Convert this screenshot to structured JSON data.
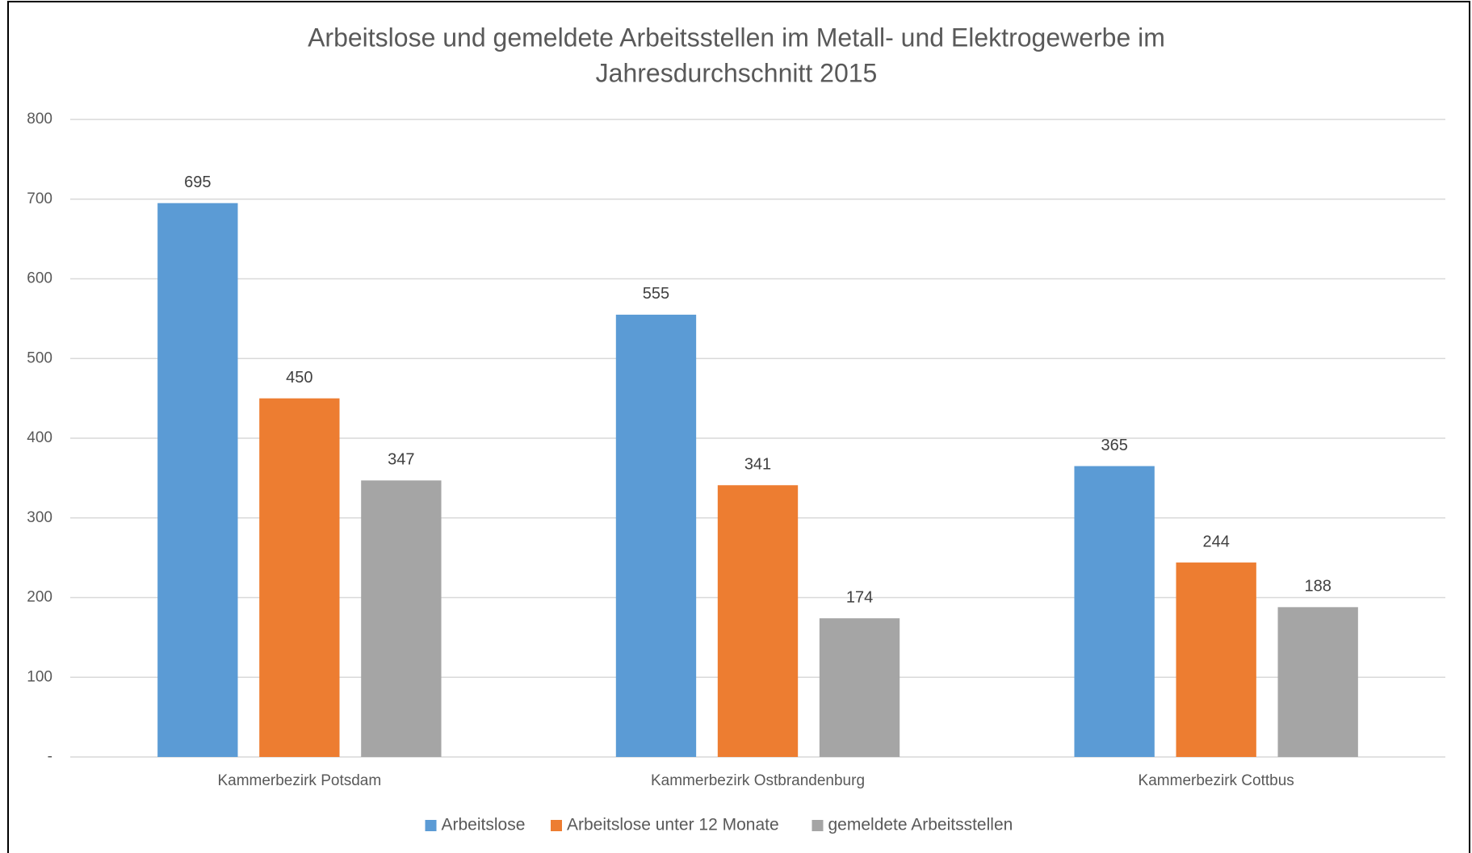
{
  "chart_data": {
    "type": "bar",
    "title": [
      "Arbeitslose und gemeldete Arbeitsstellen im Metall- und Elektrogewerbe im",
      "Jahresdurchschnitt 2015"
    ],
    "categories": [
      "Kammerbezirk Potsdam",
      "Kammerbezirk Ostbrandenburg",
      "Kammerbezirk Cottbus"
    ],
    "series": [
      {
        "name": "Arbeitslose",
        "color": "#5b9bd5",
        "values": [
          695,
          555,
          365
        ]
      },
      {
        "name": "Arbeitslose unter 12 Monate",
        "color": "#ed7d31",
        "values": [
          450,
          341,
          244
        ]
      },
      {
        "name": "gemeldete Arbeitsstellen",
        "color": "#a5a5a5",
        "values": [
          347,
          174,
          188
        ]
      }
    ],
    "ylim": [
      0,
      800
    ],
    "yticks": [
      {
        "value": 0,
        "label": "-"
      },
      100,
      200,
      300,
      400,
      500,
      600,
      700,
      800
    ],
    "grid": true,
    "legend": "bottom"
  }
}
